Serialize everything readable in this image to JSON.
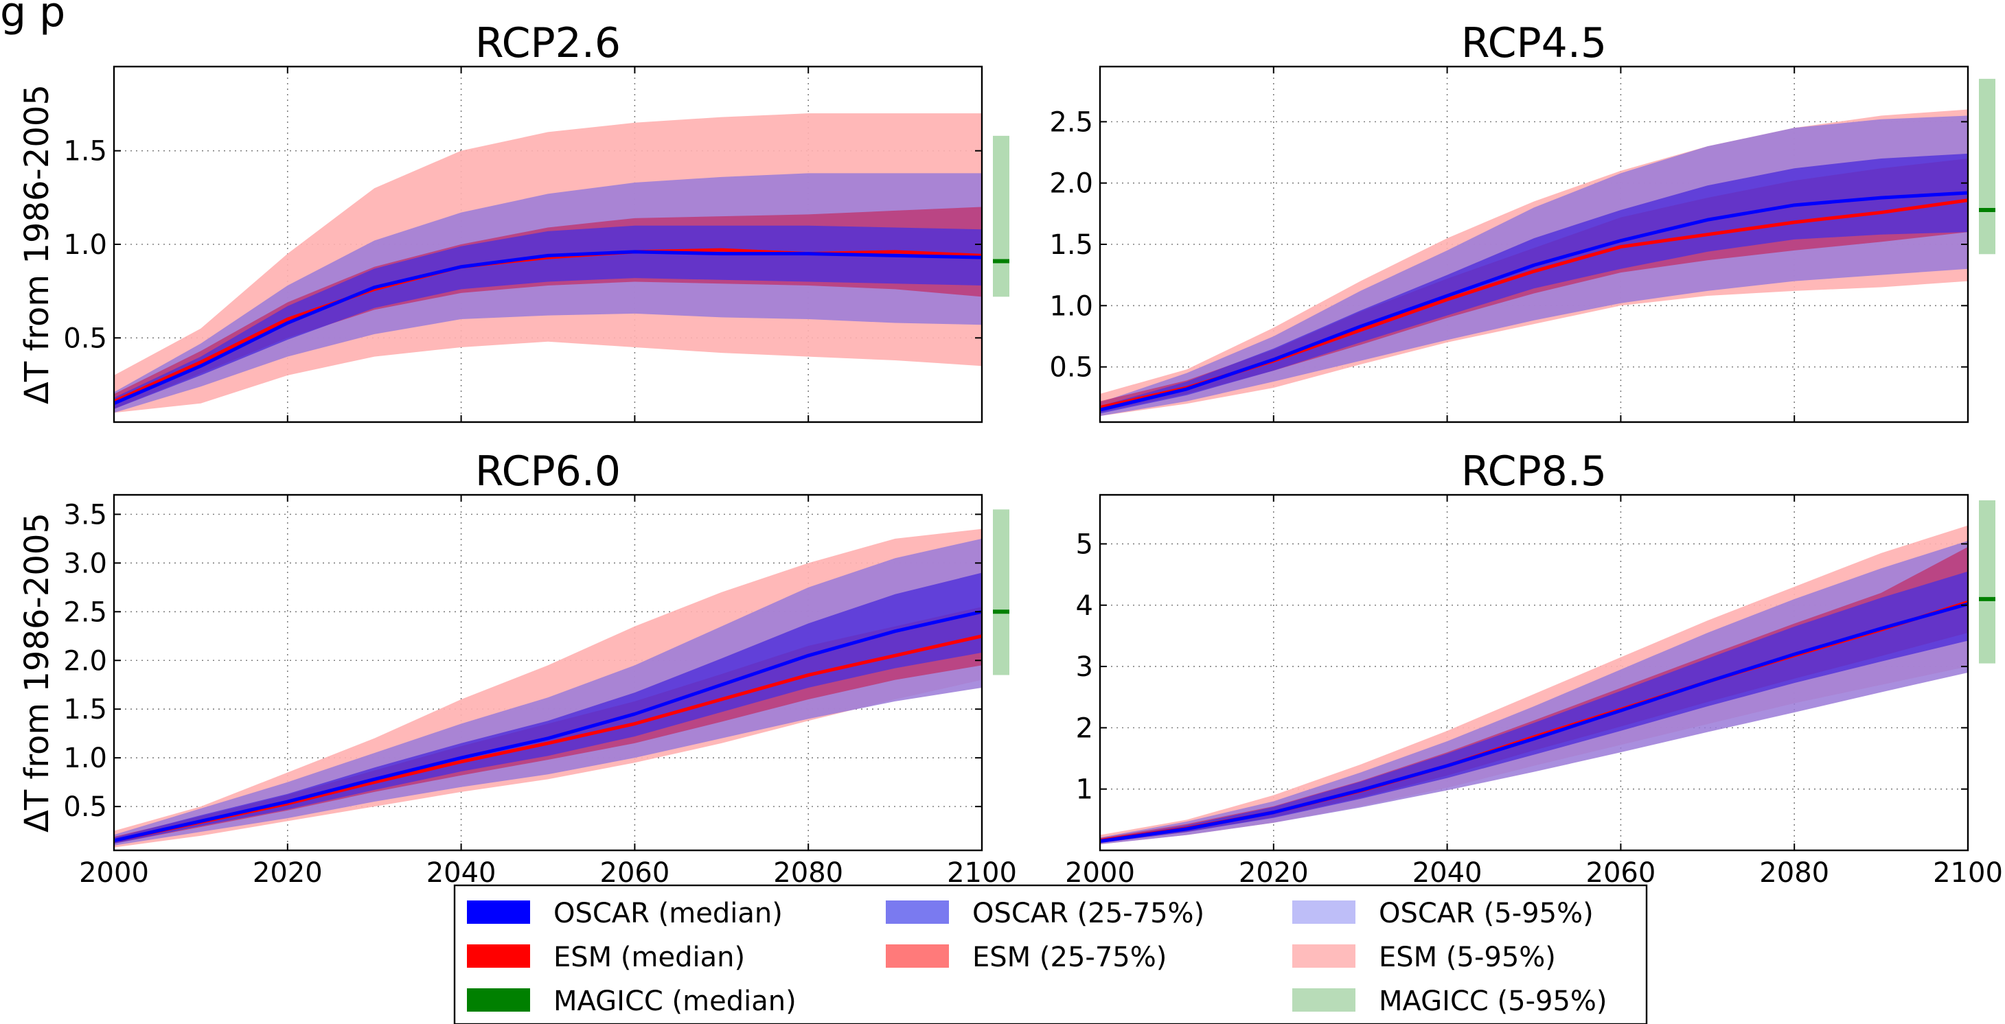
{
  "figure": {
    "partial_header": "g                                       p"
  },
  "colors": {
    "oscar_median": "#0000ff",
    "oscar_25_75": "#4f2fd9",
    "oscar_5_95": "#9a7ad8",
    "esm_median": "#ff0000",
    "esm_25_75": "#c0306a",
    "esm_5_95": "#ffb0b0",
    "magicc_median": "#008000",
    "magicc_5_95": "#b3dbb3"
  },
  "legend": {
    "items": [
      {
        "label": "OSCAR (median)",
        "color": "#0000ff"
      },
      {
        "label": "OSCAR (25-75%)",
        "color": "#7a7af0"
      },
      {
        "label": "OSCAR (5-95%)",
        "color": "#bebef8"
      },
      {
        "label": "ESM (median)",
        "color": "#ff0000"
      },
      {
        "label": "ESM (25-75%)",
        "color": "#ff7a7a"
      },
      {
        "label": "ESM (5-95%)",
        "color": "#ffbcbc"
      },
      {
        "label": "MAGICC (median)",
        "color": "#008000"
      },
      {
        "label": "MAGICC (5-95%)",
        "color": "#b8dcb8"
      }
    ]
  },
  "chart_data": [
    {
      "type": "area",
      "title": "RCP2.6",
      "ylabel": "ΔT from 1986-2005",
      "xlabel": "",
      "xlim": [
        2000,
        2100
      ],
      "ylim": [
        0.05,
        1.95
      ],
      "grid": true,
      "x_ticks": [
        2000,
        2020,
        2040,
        2060,
        2080,
        2100
      ],
      "x_tick_labels": [],
      "y_ticks": [
        0.5,
        1.0,
        1.5
      ],
      "y_tick_labels": [
        "0.5",
        "1.0",
        "1.5"
      ],
      "x": [
        2000,
        2010,
        2020,
        2030,
        2040,
        2050,
        2060,
        2070,
        2080,
        2090,
        2100
      ],
      "series": [
        {
          "name": "OSCAR (median)",
          "kind": "line",
          "values": [
            0.15,
            0.35,
            0.58,
            0.77,
            0.88,
            0.94,
            0.96,
            0.95,
            0.95,
            0.94,
            0.93
          ]
        },
        {
          "name": "ESM (median)",
          "kind": "line",
          "values": [
            0.16,
            0.37,
            0.6,
            0.76,
            0.88,
            0.93,
            0.96,
            0.97,
            0.95,
            0.96,
            0.94
          ]
        },
        {
          "name": "OSCAR (25-75%)",
          "kind": "band",
          "lower": [
            0.12,
            0.3,
            0.49,
            0.66,
            0.76,
            0.8,
            0.82,
            0.81,
            0.8,
            0.79,
            0.78
          ],
          "upper": [
            0.18,
            0.4,
            0.67,
            0.87,
            0.99,
            1.07,
            1.1,
            1.1,
            1.1,
            1.09,
            1.08
          ]
        },
        {
          "name": "OSCAR (5-95%)",
          "kind": "band",
          "lower": [
            0.1,
            0.24,
            0.4,
            0.52,
            0.6,
            0.62,
            0.63,
            0.61,
            0.6,
            0.58,
            0.57
          ],
          "upper": [
            0.21,
            0.47,
            0.78,
            1.02,
            1.17,
            1.27,
            1.33,
            1.36,
            1.38,
            1.38,
            1.38
          ]
        },
        {
          "name": "ESM (25-75%)",
          "kind": "band",
          "lower": [
            0.12,
            0.31,
            0.5,
            0.65,
            0.74,
            0.78,
            0.8,
            0.79,
            0.78,
            0.76,
            0.72
          ],
          "upper": [
            0.2,
            0.43,
            0.69,
            0.88,
            1.0,
            1.09,
            1.14,
            1.15,
            1.16,
            1.18,
            1.2
          ]
        },
        {
          "name": "ESM (5-95%)",
          "kind": "band",
          "lower": [
            0.1,
            0.15,
            0.3,
            0.4,
            0.45,
            0.48,
            0.45,
            0.42,
            0.4,
            0.38,
            0.35
          ],
          "upper": [
            0.3,
            0.55,
            0.95,
            1.3,
            1.5,
            1.6,
            1.65,
            1.68,
            1.7,
            1.7,
            1.7
          ]
        }
      ],
      "magicc": {
        "median": 0.91,
        "range": [
          0.72,
          1.58
        ]
      }
    },
    {
      "type": "area",
      "title": "RCP4.5",
      "ylabel": "",
      "xlabel": "",
      "xlim": [
        2000,
        2100
      ],
      "ylim": [
        0.05,
        2.95
      ],
      "grid": true,
      "x_ticks": [
        2000,
        2020,
        2040,
        2060,
        2080,
        2100
      ],
      "x_tick_labels": [],
      "y_ticks": [
        0.5,
        1.0,
        1.5,
        2.0,
        2.5
      ],
      "y_tick_labels": [
        "0.5",
        "1.0",
        "1.5",
        "2.0",
        "2.5"
      ],
      "x": [
        2000,
        2010,
        2020,
        2030,
        2040,
        2050,
        2060,
        2070,
        2080,
        2090,
        2100
      ],
      "series": [
        {
          "name": "OSCAR (median)",
          "kind": "line",
          "values": [
            0.15,
            0.32,
            0.56,
            0.83,
            1.08,
            1.33,
            1.53,
            1.7,
            1.82,
            1.88,
            1.92
          ]
        },
        {
          "name": "ESM (median)",
          "kind": "line",
          "values": [
            0.17,
            0.33,
            0.55,
            0.8,
            1.05,
            1.28,
            1.48,
            1.58,
            1.68,
            1.76,
            1.86
          ]
        },
        {
          "name": "OSCAR (25-75%)",
          "kind": "band",
          "lower": [
            0.12,
            0.27,
            0.47,
            0.7,
            0.92,
            1.14,
            1.3,
            1.44,
            1.54,
            1.58,
            1.6
          ],
          "upper": [
            0.18,
            0.38,
            0.65,
            0.96,
            1.25,
            1.55,
            1.78,
            1.98,
            2.12,
            2.2,
            2.24
          ]
        },
        {
          "name": "OSCAR (5-95%)",
          "kind": "band",
          "lower": [
            0.1,
            0.22,
            0.38,
            0.55,
            0.72,
            0.88,
            1.02,
            1.12,
            1.2,
            1.25,
            1.3
          ],
          "upper": [
            0.21,
            0.45,
            0.75,
            1.12,
            1.45,
            1.8,
            2.08,
            2.3,
            2.45,
            2.52,
            2.55
          ]
        },
        {
          "name": "ESM (25-75%)",
          "kind": "band",
          "lower": [
            0.13,
            0.28,
            0.47,
            0.68,
            0.9,
            1.1,
            1.27,
            1.37,
            1.45,
            1.52,
            1.6
          ],
          "upper": [
            0.22,
            0.39,
            0.64,
            0.95,
            1.22,
            1.47,
            1.72,
            1.88,
            2.02,
            2.12,
            2.2
          ]
        },
        {
          "name": "ESM (5-95%)",
          "kind": "band",
          "lower": [
            0.1,
            0.2,
            0.33,
            0.52,
            0.7,
            0.85,
            1.0,
            1.08,
            1.12,
            1.15,
            1.2
          ],
          "upper": [
            0.28,
            0.48,
            0.82,
            1.2,
            1.55,
            1.85,
            2.1,
            2.3,
            2.45,
            2.55,
            2.6
          ]
        }
      ],
      "magicc": {
        "median": 1.78,
        "range": [
          1.42,
          2.85
        ]
      }
    },
    {
      "type": "area",
      "title": "RCP6.0",
      "ylabel": "ΔT from 1986-2005",
      "xlabel": "",
      "xlim": [
        2000,
        2100
      ],
      "ylim": [
        0.05,
        3.7
      ],
      "grid": true,
      "x_ticks": [
        2000,
        2020,
        2040,
        2060,
        2080,
        2100
      ],
      "x_tick_labels": [
        "2000",
        "2020",
        "2040",
        "2060",
        "2080",
        "2100"
      ],
      "y_ticks": [
        0.5,
        1.0,
        1.5,
        2.0,
        2.5,
        3.0,
        3.5
      ],
      "y_tick_labels": [
        "0.5",
        "1.0",
        "1.5",
        "2.0",
        "2.5",
        "3.0",
        "3.5"
      ],
      "x": [
        2000,
        2010,
        2020,
        2030,
        2040,
        2050,
        2060,
        2070,
        2080,
        2090,
        2100
      ],
      "series": [
        {
          "name": "OSCAR (median)",
          "kind": "line",
          "values": [
            0.15,
            0.35,
            0.55,
            0.78,
            1.0,
            1.2,
            1.45,
            1.75,
            2.05,
            2.3,
            2.5
          ]
        },
        {
          "name": "ESM (median)",
          "kind": "line",
          "values": [
            0.15,
            0.34,
            0.53,
            0.75,
            0.96,
            1.15,
            1.35,
            1.6,
            1.85,
            2.05,
            2.25
          ]
        },
        {
          "name": "OSCAR (25-75%)",
          "kind": "band",
          "lower": [
            0.12,
            0.3,
            0.47,
            0.67,
            0.86,
            1.02,
            1.22,
            1.47,
            1.72,
            1.92,
            2.08
          ],
          "upper": [
            0.18,
            0.41,
            0.63,
            0.9,
            1.15,
            1.38,
            1.67,
            2.02,
            2.38,
            2.68,
            2.9
          ]
        },
        {
          "name": "OSCAR (5-95%)",
          "kind": "band",
          "lower": [
            0.1,
            0.24,
            0.38,
            0.55,
            0.7,
            0.83,
            1.0,
            1.2,
            1.4,
            1.58,
            1.72
          ],
          "upper": [
            0.21,
            0.48,
            0.75,
            1.05,
            1.35,
            1.62,
            1.95,
            2.35,
            2.75,
            3.05,
            3.25
          ]
        },
        {
          "name": "ESM (25-75%)",
          "kind": "band",
          "lower": [
            0.12,
            0.29,
            0.46,
            0.65,
            0.82,
            0.98,
            1.15,
            1.37,
            1.6,
            1.8,
            1.95
          ],
          "upper": [
            0.19,
            0.4,
            0.62,
            0.87,
            1.12,
            1.35,
            1.58,
            1.86,
            2.15,
            2.35,
            2.55
          ]
        },
        {
          "name": "ESM (5-95%)",
          "kind": "band",
          "lower": [
            0.08,
            0.2,
            0.35,
            0.5,
            0.65,
            0.78,
            0.95,
            1.15,
            1.38,
            1.6,
            1.8
          ],
          "upper": [
            0.25,
            0.5,
            0.85,
            1.2,
            1.6,
            1.95,
            2.35,
            2.7,
            3.0,
            3.25,
            3.35
          ]
        }
      ],
      "magicc": {
        "median": 2.5,
        "range": [
          1.85,
          3.55
        ]
      }
    },
    {
      "type": "area",
      "title": "RCP8.5",
      "ylabel": "",
      "xlabel": "",
      "xlim": [
        2000,
        2100
      ],
      "ylim": [
        0.0,
        5.8
      ],
      "grid": true,
      "x_ticks": [
        2000,
        2020,
        2040,
        2060,
        2080,
        2100
      ],
      "x_tick_labels": [
        "2000",
        "2020",
        "2040",
        "2060",
        "2080",
        "2100"
      ],
      "y_ticks": [
        1,
        2,
        3,
        4,
        5
      ],
      "y_tick_labels": [
        "1",
        "2",
        "3",
        "4",
        "5"
      ],
      "x": [
        2000,
        2010,
        2020,
        2030,
        2040,
        2050,
        2060,
        2070,
        2080,
        2090,
        2100
      ],
      "series": [
        {
          "name": "OSCAR (median)",
          "kind": "line",
          "values": [
            0.15,
            0.35,
            0.62,
            0.98,
            1.38,
            1.82,
            2.28,
            2.75,
            3.2,
            3.62,
            4.02
          ]
        },
        {
          "name": "ESM (median)",
          "kind": "line",
          "values": [
            0.16,
            0.36,
            0.62,
            0.97,
            1.38,
            1.85,
            2.3,
            2.75,
            3.18,
            3.6,
            4.05
          ]
        },
        {
          "name": "OSCAR (25-75%)",
          "kind": "band",
          "lower": [
            0.12,
            0.3,
            0.53,
            0.84,
            1.18,
            1.56,
            1.95,
            2.35,
            2.73,
            3.08,
            3.42
          ],
          "upper": [
            0.18,
            0.41,
            0.71,
            1.12,
            1.58,
            2.08,
            2.6,
            3.13,
            3.65,
            4.12,
            4.55
          ]
        },
        {
          "name": "OSCAR (5-95%)",
          "kind": "band",
          "lower": [
            0.1,
            0.25,
            0.45,
            0.7,
            0.98,
            1.28,
            1.6,
            1.93,
            2.25,
            2.58,
            2.9
          ],
          "upper": [
            0.21,
            0.47,
            0.8,
            1.27,
            1.78,
            2.35,
            2.95,
            3.55,
            4.1,
            4.6,
            5.05
          ]
        },
        {
          "name": "ESM (25-75%)",
          "kind": "band",
          "lower": [
            0.12,
            0.3,
            0.54,
            0.86,
            1.22,
            1.63,
            2.02,
            2.42,
            2.8,
            3.17,
            3.55
          ],
          "upper": [
            0.2,
            0.43,
            0.72,
            1.13,
            1.6,
            2.12,
            2.65,
            3.18,
            3.7,
            4.2,
            4.95
          ]
        },
        {
          "name": "ESM (5-95%)",
          "kind": "band",
          "lower": [
            0.1,
            0.25,
            0.45,
            0.72,
            1.02,
            1.38,
            1.72,
            2.06,
            2.4,
            2.7,
            3.0
          ],
          "upper": [
            0.25,
            0.5,
            0.9,
            1.4,
            1.95,
            2.55,
            3.15,
            3.75,
            4.3,
            4.85,
            5.3
          ]
        }
      ],
      "magicc": {
        "median": 4.1,
        "range": [
          3.05,
          5.8
        ]
      }
    }
  ]
}
